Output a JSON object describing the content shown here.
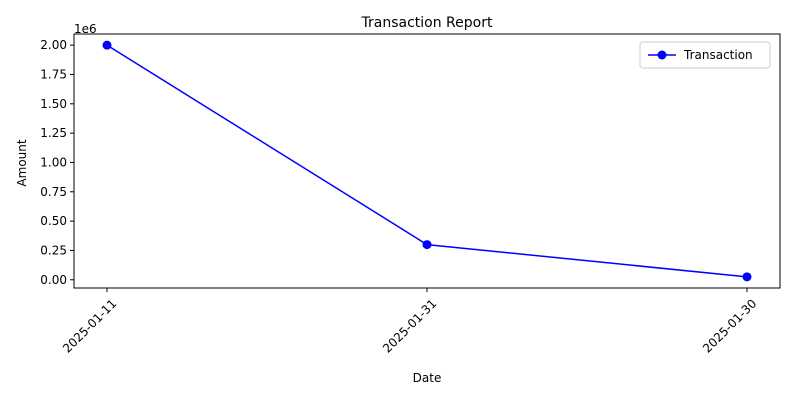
{
  "chart_data": {
    "type": "line",
    "title": "Transaction Report",
    "xlabel": "Date",
    "ylabel": "Amount",
    "y_offset_label": "1e6",
    "categories": [
      "2025-01-11",
      "2025-01-31",
      "2025-01-30"
    ],
    "series": [
      {
        "name": "Transaction",
        "values": [
          2000000,
          300000,
          25000
        ],
        "color": "#0000ff",
        "marker": "circle"
      }
    ],
    "ylim": [
      -70000,
      2095000
    ],
    "y_ticks": [
      0,
      250000,
      500000,
      750000,
      1000000,
      1250000,
      1500000,
      1750000,
      2000000
    ],
    "y_tick_labels": [
      "0.00",
      "0.25",
      "0.50",
      "0.75",
      "1.00",
      "1.25",
      "1.50",
      "1.75",
      "2.00"
    ],
    "grid": false,
    "legend_position": "top-right",
    "x_tick_rotation": 45
  }
}
